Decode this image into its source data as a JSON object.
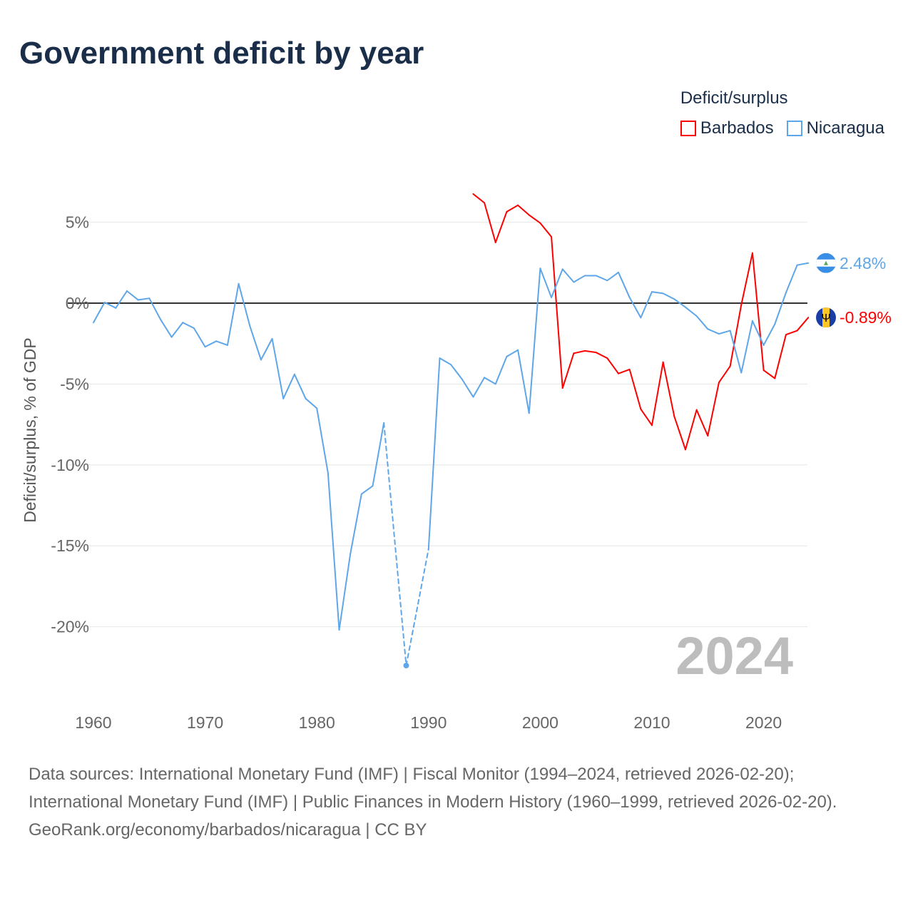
{
  "title": "Government deficit by year",
  "legend": {
    "title": "Deficit/surplus"
  },
  "chart_data": {
    "type": "line",
    "title": "Government deficit by year",
    "xlabel": "",
    "ylabel": "Deficit/surplus, % of GDP",
    "xlim": [
      1960,
      2024
    ],
    "ylim": [
      -24,
      7
    ],
    "x_ticks": [
      1960,
      1970,
      1980,
      1990,
      2000,
      2010,
      2020
    ],
    "x_tick_labels": [
      "1960",
      "1970",
      "1980",
      "1990",
      "2000",
      "2010",
      "2020"
    ],
    "y_ticks": [
      5,
      0,
      -5,
      -10,
      -15,
      -20
    ],
    "y_tick_labels": [
      "5%",
      "0%",
      "-5%",
      "-10%",
      "-15%",
      "-20%"
    ],
    "grid": true,
    "legend_position": "top-right",
    "watermark_year": "2024",
    "series": [
      {
        "name": "Barbados",
        "color": "#ff0000",
        "end_label": "-0.89%",
        "flag": "barbados-flag",
        "points": [
          [
            1994,
            6.75
          ],
          [
            1995,
            6.2
          ],
          [
            1996,
            3.75
          ],
          [
            1997,
            5.65
          ],
          [
            1998,
            6.05
          ],
          [
            1999,
            5.45
          ],
          [
            2000,
            4.95
          ],
          [
            2001,
            4.1
          ],
          [
            2002,
            -5.25
          ],
          [
            2003,
            -3.1
          ],
          [
            2004,
            -2.95
          ],
          [
            2005,
            -3.05
          ],
          [
            2006,
            -3.4
          ],
          [
            2007,
            -4.35
          ],
          [
            2008,
            -4.1
          ],
          [
            2009,
            -6.55
          ],
          [
            2010,
            -7.55
          ],
          [
            2011,
            -3.65
          ],
          [
            2012,
            -7.0
          ],
          [
            2013,
            -9.05
          ],
          [
            2014,
            -6.6
          ],
          [
            2015,
            -8.2
          ],
          [
            2016,
            -4.9
          ],
          [
            2017,
            -3.9
          ],
          [
            2018,
            -0.1
          ],
          [
            2019,
            3.1
          ],
          [
            2020,
            -4.15
          ],
          [
            2021,
            -4.65
          ],
          [
            2022,
            -1.95
          ],
          [
            2023,
            -1.7
          ],
          [
            2024,
            -0.89
          ]
        ]
      },
      {
        "name": "Nicaragua",
        "color": "#5ea6e8",
        "end_label": "2.48%",
        "flag": "nicaragua-flag",
        "points": [
          [
            1960,
            -1.2
          ],
          [
            1961,
            0.05
          ],
          [
            1962,
            -0.3
          ],
          [
            1963,
            0.75
          ],
          [
            1964,
            0.2
          ],
          [
            1965,
            0.3
          ],
          [
            1966,
            -1.0
          ],
          [
            1967,
            -2.1
          ],
          [
            1968,
            -1.2
          ],
          [
            1969,
            -1.55
          ],
          [
            1970,
            -2.7
          ],
          [
            1971,
            -2.35
          ],
          [
            1972,
            -2.6
          ],
          [
            1973,
            1.2
          ],
          [
            1974,
            -1.4
          ],
          [
            1975,
            -3.5
          ],
          [
            1976,
            -2.2
          ],
          [
            1977,
            -5.9
          ],
          [
            1978,
            -4.4
          ],
          [
            1979,
            -5.9
          ],
          [
            1980,
            -6.5
          ],
          [
            1981,
            -10.5
          ],
          [
            1982,
            -20.2
          ],
          [
            1983,
            -15.5
          ],
          [
            1984,
            -11.8
          ],
          [
            1985,
            -11.3
          ],
          [
            1986,
            -7.4
          ],
          [
            1988,
            -22.4
          ],
          [
            1990,
            -15.2
          ],
          [
            1991,
            -3.4
          ],
          [
            1992,
            -3.8
          ],
          [
            1993,
            -4.7
          ],
          [
            1994,
            -5.8
          ],
          [
            1995,
            -4.6
          ],
          [
            1996,
            -5.0
          ],
          [
            1997,
            -3.3
          ],
          [
            1998,
            -2.9
          ],
          [
            1999,
            -6.8
          ],
          [
            2000,
            2.15
          ],
          [
            2001,
            0.35
          ],
          [
            2002,
            2.1
          ],
          [
            2003,
            1.3
          ],
          [
            2004,
            1.7
          ],
          [
            2005,
            1.7
          ],
          [
            2006,
            1.4
          ],
          [
            2007,
            1.9
          ],
          [
            2008,
            0.35
          ],
          [
            2009,
            -0.9
          ],
          [
            2010,
            0.7
          ],
          [
            2011,
            0.6
          ],
          [
            2012,
            0.25
          ],
          [
            2013,
            -0.25
          ],
          [
            2014,
            -0.8
          ],
          [
            2015,
            -1.6
          ],
          [
            2016,
            -1.9
          ],
          [
            2017,
            -1.7
          ],
          [
            2018,
            -4.3
          ],
          [
            2019,
            -1.1
          ],
          [
            2020,
            -2.6
          ],
          [
            2021,
            -1.3
          ],
          [
            2022,
            0.65
          ],
          [
            2023,
            2.35
          ],
          [
            2024,
            2.48
          ]
        ]
      }
    ]
  },
  "footer": {
    "line1": "Data sources: International Monetary Fund (IMF) | Fiscal Monitor (1994–2024, retrieved 2026-02-20); International Monetary Fund (IMF) | Public Finances in Modern History (1960–1999, retrieved 2026-02-20).",
    "line2": "GeoRank.org/economy/barbados/nicaragua | CC BY"
  }
}
